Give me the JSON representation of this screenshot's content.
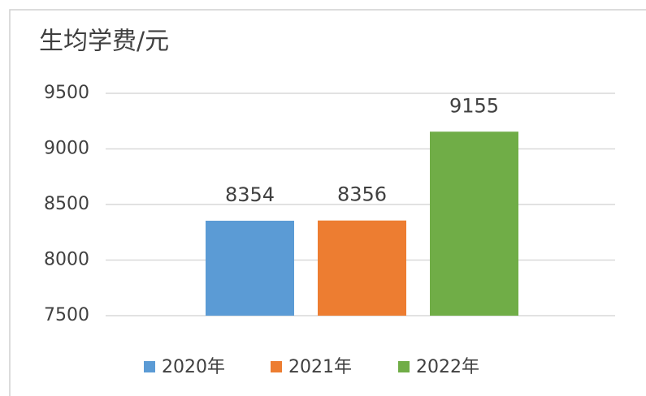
{
  "chart_data": {
    "type": "bar",
    "title": "生均学费/元",
    "categories": [
      null
    ],
    "series": [
      {
        "name": "2020年",
        "color": "#5b9bd5",
        "values": [
          8354
        ]
      },
      {
        "name": "2021年",
        "color": "#ed7d31",
        "values": [
          8356
        ]
      },
      {
        "name": "2022年",
        "color": "#70ad47",
        "values": [
          9155
        ]
      }
    ],
    "ylim": [
      7500,
      9500
    ],
    "yticks": [
      7500,
      8000,
      8500,
      9000,
      9500
    ],
    "grid": true,
    "legend": "bottom"
  }
}
